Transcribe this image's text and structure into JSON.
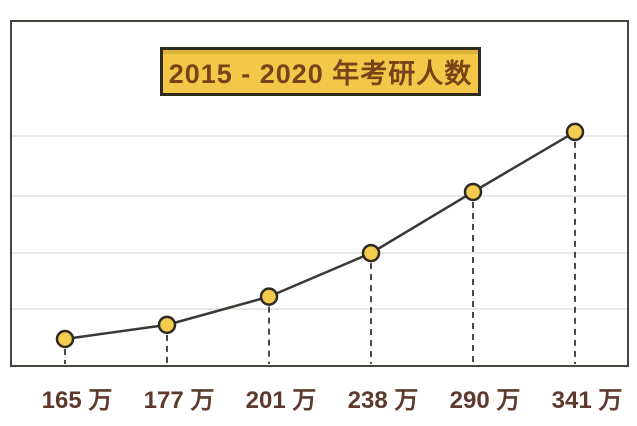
{
  "chart_data": {
    "type": "line",
    "title": "2015 - 2020 年考研人数",
    "unit": "万",
    "categories": [
      "165 万",
      "177 万",
      "201 万",
      "238 万",
      "290 万",
      "341 万"
    ],
    "values": [
      165,
      177,
      201,
      238,
      290,
      341
    ],
    "labels": [
      "165 万",
      "177 万",
      "201 万",
      "238 万",
      "290 万",
      "341 万"
    ],
    "xlabel": "",
    "ylabel": "",
    "ylim": [
      150,
      365
    ],
    "grid": "horizontal-only",
    "legend": "none",
    "marker": "circle",
    "droplines": "dashed-vertical"
  },
  "colors": {
    "accent_yellow": "#f5c748",
    "title_border": "#2f2b1d",
    "title_text": "#774318",
    "label_text": "#5d3a2c",
    "frame_border": "#46443d",
    "gridline": "#e8e7e3",
    "trend_line": "#3b3935",
    "dropline": "#4a4845",
    "point_fill": "#f6cc4e",
    "point_stroke": "#2d2a23",
    "background": "#ffffff"
  }
}
